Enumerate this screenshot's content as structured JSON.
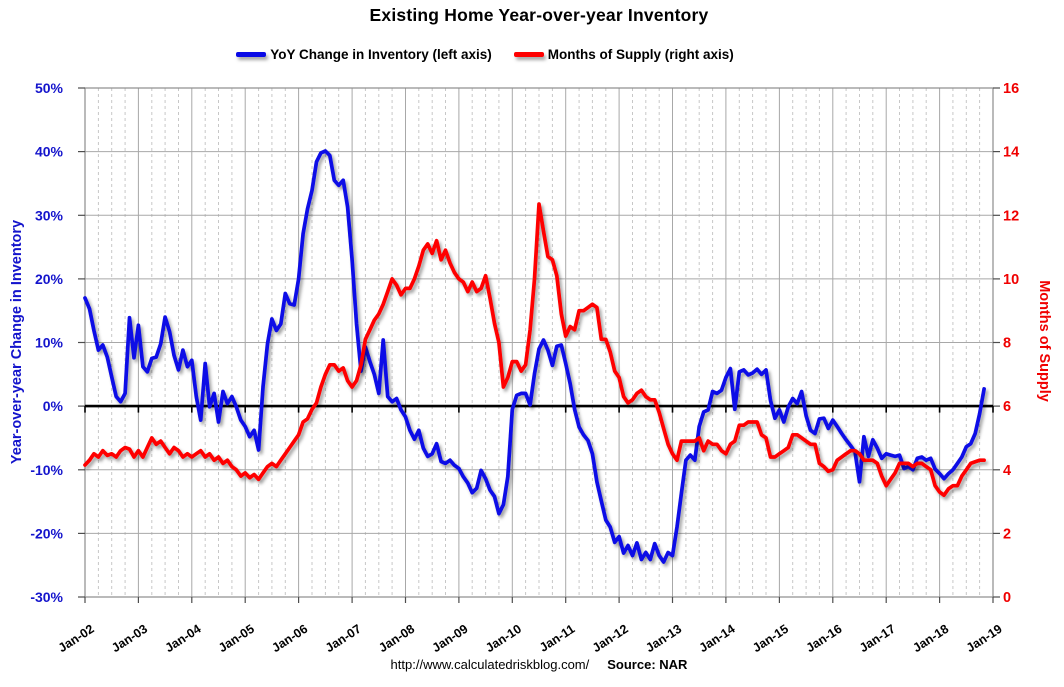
{
  "chart_data": {
    "type": "line",
    "title": "Existing Home Year-over-year Inventory",
    "footer": {
      "url": "http://www.calculatedriskblog.com/",
      "source_label": "Source: NAR"
    },
    "x_start": "Jan-2002",
    "x_tick_labels": [
      "Jan-02",
      "Jan-03",
      "Jan-04",
      "Jan-05",
      "Jan-06",
      "Jan-07",
      "Jan-08",
      "Jan-09",
      "Jan-10",
      "Jan-11",
      "Jan-12",
      "Jan-13",
      "Jan-14",
      "Jan-15",
      "Jan-16",
      "Jan-17",
      "Jan-18",
      "Jan-19"
    ],
    "left_axis": {
      "title": "Year-over-year Change in Inventory",
      "color": "#1414cc",
      "min": -30,
      "max": 50,
      "tick_step_pct": 10,
      "ticks": [
        "50%",
        "40%",
        "30%",
        "20%",
        "10%",
        "0%",
        "-10%",
        "-20%",
        "-30%"
      ]
    },
    "right_axis": {
      "title": "Months of Supply",
      "color": "#f00000",
      "min": 0,
      "max": 16,
      "tick_step": 2,
      "ticks": [
        "16",
        "14",
        "12",
        "10",
        "8",
        "6",
        "4",
        "2",
        "0"
      ]
    },
    "grid": {
      "vertical_major_every_months": 12,
      "vertical_minor_every_months": 3,
      "horizontal_every_pct": 10
    },
    "series": [
      {
        "name": "YoY Change in Inventory (left axis)",
        "axis": "left",
        "color": "#0a0ae6",
        "unit": "%",
        "values": [
          17.0,
          15.3,
          11.9,
          8.8,
          9.6,
          7.7,
          4.6,
          1.5,
          0.7,
          2.0,
          13.9,
          7.6,
          12.7,
          6.2,
          5.4,
          7.5,
          7.7,
          9.8,
          14.0,
          11.7,
          8.0,
          5.7,
          8.8,
          6.2,
          7.2,
          1.5,
          -2.2,
          6.7,
          -0.1,
          2.0,
          -2.5,
          2.3,
          0.4,
          1.5,
          -0.1,
          -2.2,
          -3.2,
          -4.8,
          -3.8,
          -6.9,
          3.0,
          9.8,
          13.7,
          11.9,
          12.9,
          17.7,
          16.1,
          15.9,
          20.0,
          27.1,
          31.0,
          33.9,
          38.4,
          39.8,
          40.1,
          39.4,
          35.5,
          34.7,
          35.5,
          31.3,
          23.0,
          13.0,
          5.5,
          9.3,
          7.0,
          5.0,
          2.0,
          10.4,
          1.5,
          0.7,
          1.2,
          -0.6,
          -1.7,
          -3.8,
          -5.2,
          -3.8,
          -6.6,
          -7.9,
          -7.5,
          -5.9,
          -8.7,
          -9.0,
          -8.5,
          -9.3,
          -9.8,
          -11.1,
          -12.1,
          -13.6,
          -12.9,
          -10.1,
          -11.4,
          -13.2,
          -14.2,
          -16.9,
          -15.5,
          -11.1,
          -0.5,
          1.7,
          2.0,
          2.0,
          0.2,
          5.1,
          9.0,
          10.4,
          8.8,
          6.4,
          9.4,
          9.6,
          6.7,
          3.5,
          -0.5,
          -3.3,
          -4.5,
          -5.4,
          -7.5,
          -11.9,
          -14.9,
          -17.9,
          -19.0,
          -21.4,
          -20.5,
          -23.1,
          -21.9,
          -23.5,
          -21.5,
          -24.1,
          -23.0,
          -24.1,
          -21.6,
          -23.5,
          -24.5,
          -23.0,
          -23.5,
          -19.0,
          -13.7,
          -8.5,
          -7.7,
          -8.5,
          -3.2,
          -0.9,
          -0.6,
          2.3,
          2.0,
          2.5,
          4.5,
          5.9,
          -0.5,
          5.4,
          5.7,
          4.9,
          5.2,
          5.8,
          5.0,
          5.7,
          0.9,
          -1.9,
          -0.6,
          -2.5,
          -0.1,
          1.2,
          0.4,
          2.3,
          -1.5,
          -3.8,
          -4.3,
          -2.0,
          -1.9,
          -3.5,
          -2.2,
          -3.2,
          -4.3,
          -5.3,
          -6.2,
          -7.2,
          -11.9,
          -4.8,
          -7.9,
          -5.3,
          -6.6,
          -8.2,
          -7.5,
          -7.7,
          -7.9,
          -7.7,
          -9.8,
          -9.5,
          -10.0,
          -8.2,
          -8.0,
          -8.5,
          -8.2,
          -9.9,
          -10.6,
          -11.4,
          -10.6,
          -10.0,
          -9.0,
          -8.0,
          -6.4,
          -5.9,
          -4.3,
          -1.2,
          2.7
        ]
      },
      {
        "name": "Months of Supply (right axis)",
        "axis": "right",
        "color": "#fe0000",
        "unit": "months",
        "values": [
          4.15,
          4.3,
          4.5,
          4.4,
          4.6,
          4.45,
          4.5,
          4.4,
          4.6,
          4.7,
          4.65,
          4.4,
          4.6,
          4.4,
          4.7,
          5.0,
          4.8,
          4.9,
          4.7,
          4.5,
          4.7,
          4.6,
          4.4,
          4.5,
          4.4,
          4.5,
          4.6,
          4.4,
          4.5,
          4.3,
          4.4,
          4.2,
          4.3,
          4.1,
          4.0,
          3.8,
          3.9,
          3.75,
          3.85,
          3.7,
          3.9,
          4.1,
          4.2,
          4.1,
          4.3,
          4.5,
          4.7,
          4.9,
          5.1,
          5.5,
          5.6,
          5.9,
          6.1,
          6.6,
          7.0,
          7.3,
          7.3,
          7.1,
          7.2,
          6.8,
          6.6,
          6.8,
          7.3,
          8.1,
          8.4,
          8.7,
          8.9,
          9.2,
          9.6,
          10.0,
          9.8,
          9.5,
          9.7,
          9.7,
          10.0,
          10.4,
          10.9,
          11.1,
          10.8,
          11.2,
          10.6,
          10.9,
          10.5,
          10.2,
          10.0,
          9.9,
          9.6,
          9.9,
          9.6,
          9.7,
          10.1,
          9.4,
          8.6,
          8.0,
          6.6,
          6.9,
          7.4,
          7.4,
          7.1,
          7.3,
          8.4,
          10.0,
          12.35,
          11.5,
          10.7,
          10.6,
          10.1,
          8.9,
          8.2,
          8.5,
          8.4,
          9.0,
          9.0,
          9.1,
          9.2,
          9.1,
          8.1,
          8.1,
          7.7,
          7.1,
          6.9,
          6.3,
          6.1,
          6.2,
          6.4,
          6.5,
          6.3,
          6.2,
          6.2,
          5.8,
          5.3,
          4.8,
          4.5,
          4.3,
          4.9,
          4.9,
          4.9,
          4.9,
          5.0,
          4.6,
          4.9,
          4.8,
          4.8,
          4.6,
          4.5,
          4.8,
          4.9,
          5.4,
          5.4,
          5.5,
          5.5,
          5.5,
          5.1,
          5.0,
          4.4,
          4.4,
          4.5,
          4.6,
          4.7,
          5.1,
          5.1,
          5.0,
          4.9,
          4.8,
          4.8,
          4.2,
          4.1,
          3.95,
          4.0,
          4.3,
          4.4,
          4.5,
          4.6,
          4.6,
          4.5,
          4.3,
          4.3,
          4.3,
          4.2,
          3.8,
          3.5,
          3.7,
          3.9,
          4.2,
          4.2,
          4.2,
          4.1,
          4.2,
          4.2,
          4.1,
          4.0,
          3.5,
          3.3,
          3.2,
          3.4,
          3.5,
          3.5,
          3.8,
          4.0,
          4.2,
          4.25,
          4.3,
          4.3
        ]
      }
    ]
  }
}
